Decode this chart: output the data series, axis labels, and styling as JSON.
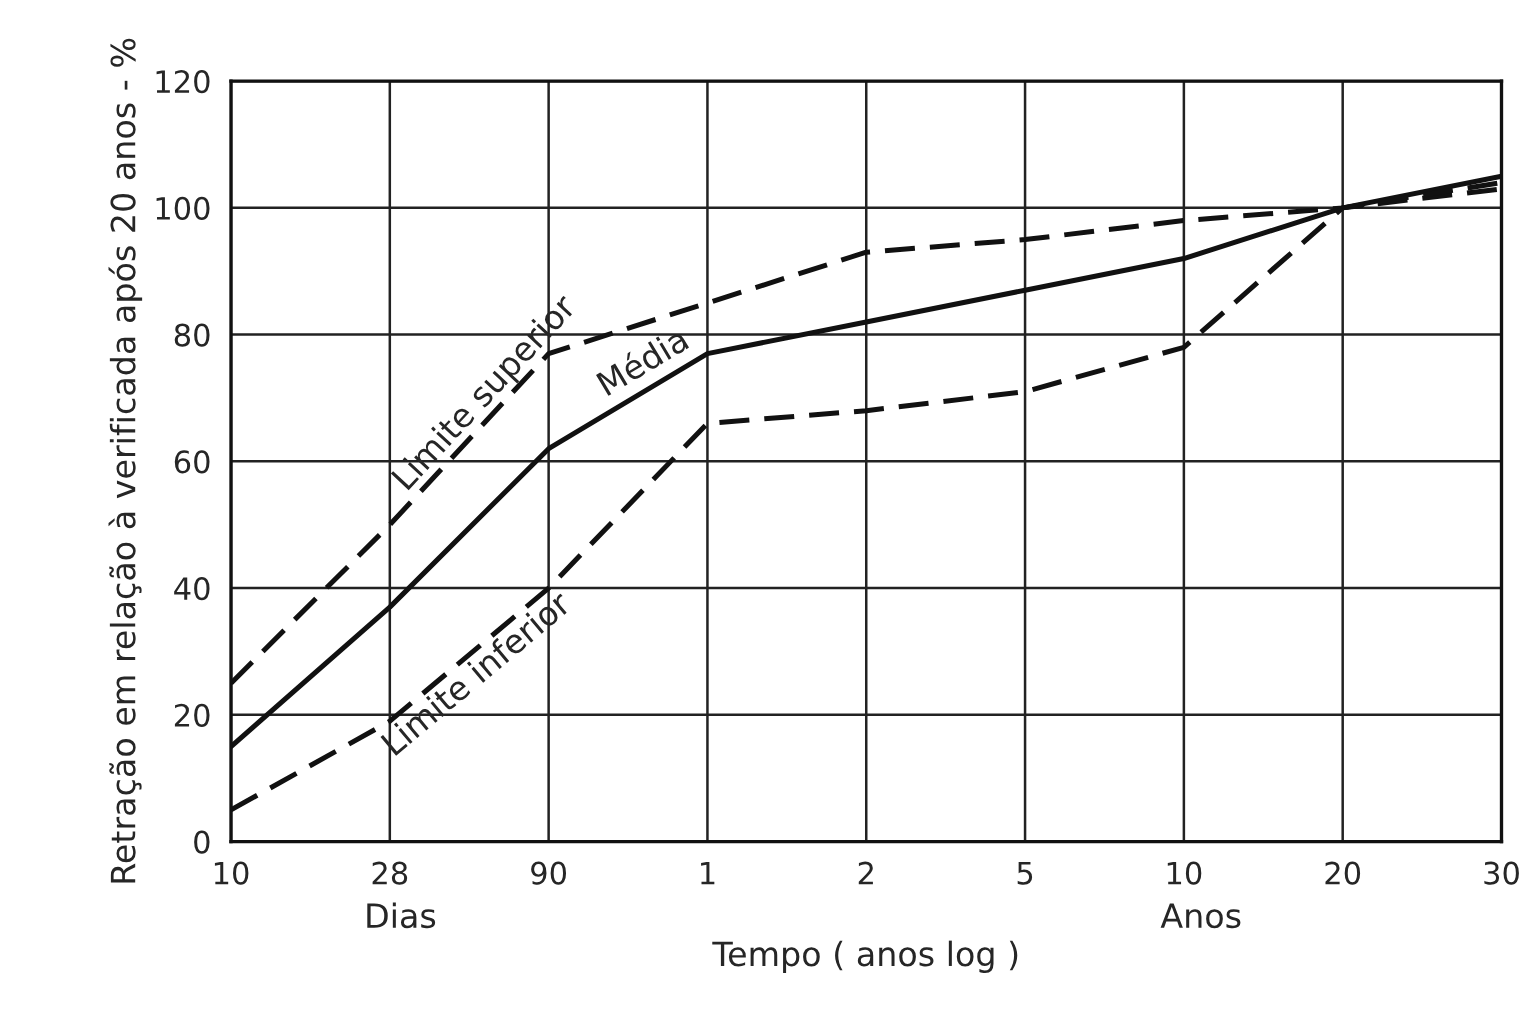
{
  "chart_data": {
    "type": "line",
    "xlabel": "Tempo ( anos log )",
    "ylabel": "Retração em relação à verificada após 20 anos - %",
    "categories": [
      "10",
      "28",
      "90",
      "1",
      "2",
      "5",
      "10",
      "20",
      "30"
    ],
    "ylim": [
      0,
      120
    ],
    "yticks": [
      0,
      20,
      40,
      60,
      80,
      100,
      120
    ],
    "grid": true,
    "series": [
      {
        "name": "Limite superior",
        "color": "#111111",
        "line_style": "dashed",
        "values": [
          25,
          50,
          77,
          85,
          93,
          95,
          98,
          100,
          103
        ]
      },
      {
        "name": "Média",
        "color": "#111111",
        "line_style": "solid",
        "values": [
          15,
          37,
          62,
          77,
          82,
          87,
          92,
          100,
          105
        ]
      },
      {
        "name": "Limite inferior",
        "color": "#111111",
        "line_style": "dashed",
        "values": [
          5,
          19,
          40,
          66,
          68,
          71,
          78,
          100,
          104
        ]
      }
    ],
    "annotations": [
      "Dias",
      "Anos"
    ]
  }
}
